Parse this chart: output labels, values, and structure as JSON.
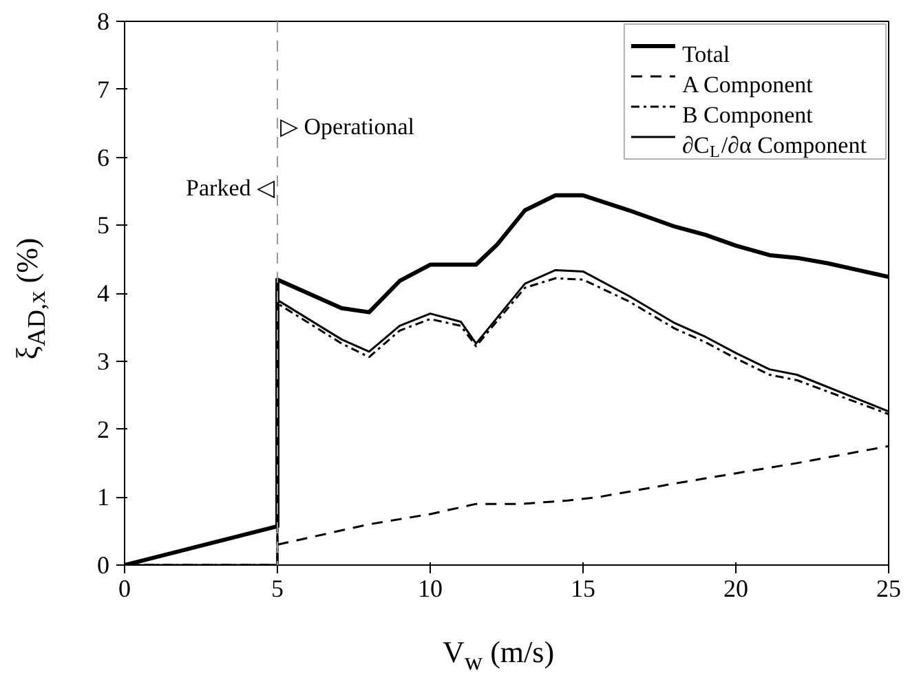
{
  "chart_data": {
    "type": "line",
    "xlabel": "V$_{w}$ (m/s)",
    "ylabel": "ξ$_{AD,x}$ (%)",
    "xlim": [
      0,
      25
    ],
    "xticks": [
      0,
      5,
      10,
      15,
      20,
      25
    ],
    "ylim": [
      0,
      8
    ],
    "yticks": [
      0,
      1,
      2,
      3,
      4,
      5,
      6,
      7,
      8
    ],
    "grid": false,
    "legend": "top right",
    "marker": "none",
    "series": [
      {
        "name": "Total",
        "color": "#000000",
        "line_style": "solid",
        "x": [
          0,
          5,
          5,
          7.1,
          8,
          9,
          10,
          11.5,
          12.2,
          13.1,
          14.1,
          15,
          16.5,
          18,
          19,
          20,
          21.1,
          22,
          23,
          24,
          25
        ],
        "values": [
          0,
          0.57,
          4.2,
          3.78,
          3.72,
          4.18,
          4.42,
          4.42,
          4.72,
          5.22,
          5.44,
          5.44,
          5.22,
          4.98,
          4.86,
          4.7,
          4.56,
          4.52,
          4.44,
          4.34,
          4.24
        ]
      },
      {
        "name": "A Component",
        "color": "#000000",
        "line_style": "dashed",
        "x": [
          0,
          5,
          5,
          8,
          10,
          11.5,
          13,
          14.5,
          15.5,
          18,
          20,
          22,
          25
        ],
        "values": [
          0,
          0,
          0.3,
          0.6,
          0.75,
          0.9,
          0.9,
          0.95,
          1.0,
          1.2,
          1.35,
          1.5,
          1.75
        ]
      },
      {
        "name": "B Component",
        "color": "#000000",
        "line_style": "dashdot",
        "x": [
          0,
          5,
          5,
          7.1,
          8,
          9,
          10,
          11,
          11.5,
          13.1,
          14.1,
          15,
          16.5,
          18,
          19,
          20,
          21.1,
          22,
          25
        ],
        "values": [
          0,
          0,
          3.85,
          3.26,
          3.06,
          3.45,
          3.62,
          3.52,
          3.22,
          4.08,
          4.22,
          4.2,
          3.88,
          3.48,
          3.28,
          3.04,
          2.8,
          2.72,
          2.22
        ]
      },
      {
        "name": "∂C$_{L}$/∂α Component",
        "color": "#000000",
        "line_style": "solid",
        "x": [
          0,
          5,
          5,
          7.1,
          8,
          9,
          10,
          11,
          11.5,
          13.1,
          14.1,
          15,
          16.5,
          18,
          19,
          20,
          21.1,
          22,
          25
        ],
        "values": [
          0,
          0,
          3.9,
          3.32,
          3.14,
          3.52,
          3.7,
          3.58,
          3.26,
          4.14,
          4.34,
          4.32,
          3.96,
          3.56,
          3.36,
          3.12,
          2.88,
          2.8,
          2.26
        ]
      }
    ],
    "ref_lines": [
      {
        "axis": "x",
        "value": 5,
        "color": "#999999",
        "line_style": "dashed"
      }
    ],
    "annotations": [
      {
        "text": "Parked ◁",
        "x": 5,
        "y": 5.55
      },
      {
        "text": "▷ Operational",
        "x": 5,
        "y": 6.45
      }
    ]
  }
}
